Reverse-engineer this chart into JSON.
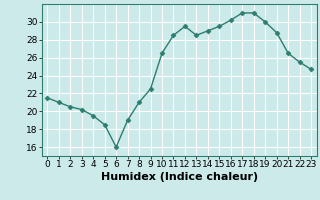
{
  "x": [
    0,
    1,
    2,
    3,
    4,
    5,
    6,
    7,
    8,
    9,
    10,
    11,
    12,
    13,
    14,
    15,
    16,
    17,
    18,
    19,
    20,
    21,
    22,
    23
  ],
  "y": [
    21.5,
    21.0,
    20.5,
    20.2,
    19.5,
    18.5,
    16.0,
    19.0,
    21.0,
    22.5,
    26.5,
    28.5,
    29.5,
    28.5,
    29.0,
    29.5,
    30.2,
    31.0,
    31.0,
    30.0,
    28.8,
    26.5,
    25.5,
    24.7
  ],
  "line_color": "#2e7d6e",
  "marker": "D",
  "marker_size": 2.5,
  "line_width": 1.0,
  "bg_color": "#cceaea",
  "grid_color": "#ffffff",
  "xlabel": "Humidex (Indice chaleur)",
  "xlim": [
    -0.5,
    23.5
  ],
  "ylim": [
    15,
    32
  ],
  "yticks": [
    16,
    18,
    20,
    22,
    24,
    26,
    28,
    30
  ],
  "xticks": [
    0,
    1,
    2,
    3,
    4,
    5,
    6,
    7,
    8,
    9,
    10,
    11,
    12,
    13,
    14,
    15,
    16,
    17,
    18,
    19,
    20,
    21,
    22,
    23
  ],
  "tick_fontsize": 6.5,
  "xlabel_fontsize": 8
}
